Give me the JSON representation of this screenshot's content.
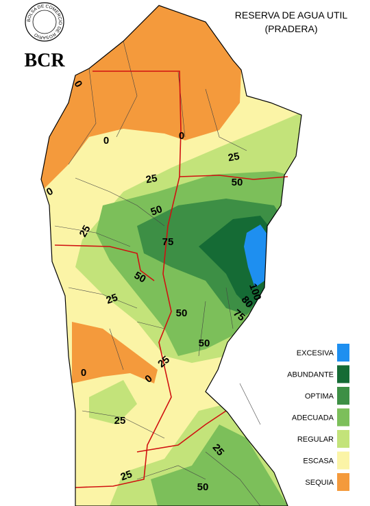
{
  "header": {
    "logo_ring": "BOLSA DE COMERCIO DE ROSARIO",
    "logo": "BCR",
    "title": "RESERVA DE AGUA UTIL",
    "subtitle": "(PRADERA)"
  },
  "legend": [
    {
      "label": "EXCESIVA",
      "color": "#1e8ff0"
    },
    {
      "label": "ABUNDANTE",
      "color": "#156b35"
    },
    {
      "label": "OPTIMA",
      "color": "#3d8f45"
    },
    {
      "label": "ADECUADA",
      "color": "#7cbf5a"
    },
    {
      "label": "REGULAR",
      "color": "#c3e37a"
    },
    {
      "label": "ESCASA",
      "color": "#fbf4a6"
    },
    {
      "label": "SEQUIA",
      "color": "#f49a3c"
    }
  ],
  "contour_labels": [
    "0",
    "0",
    "0",
    "0",
    "25",
    "25",
    "50",
    "50",
    "25",
    "75",
    "50",
    "25",
    "100",
    "80",
    "75",
    "50",
    "50",
    "25",
    "0",
    "0",
    "25",
    "25",
    "25",
    "50"
  ]
}
